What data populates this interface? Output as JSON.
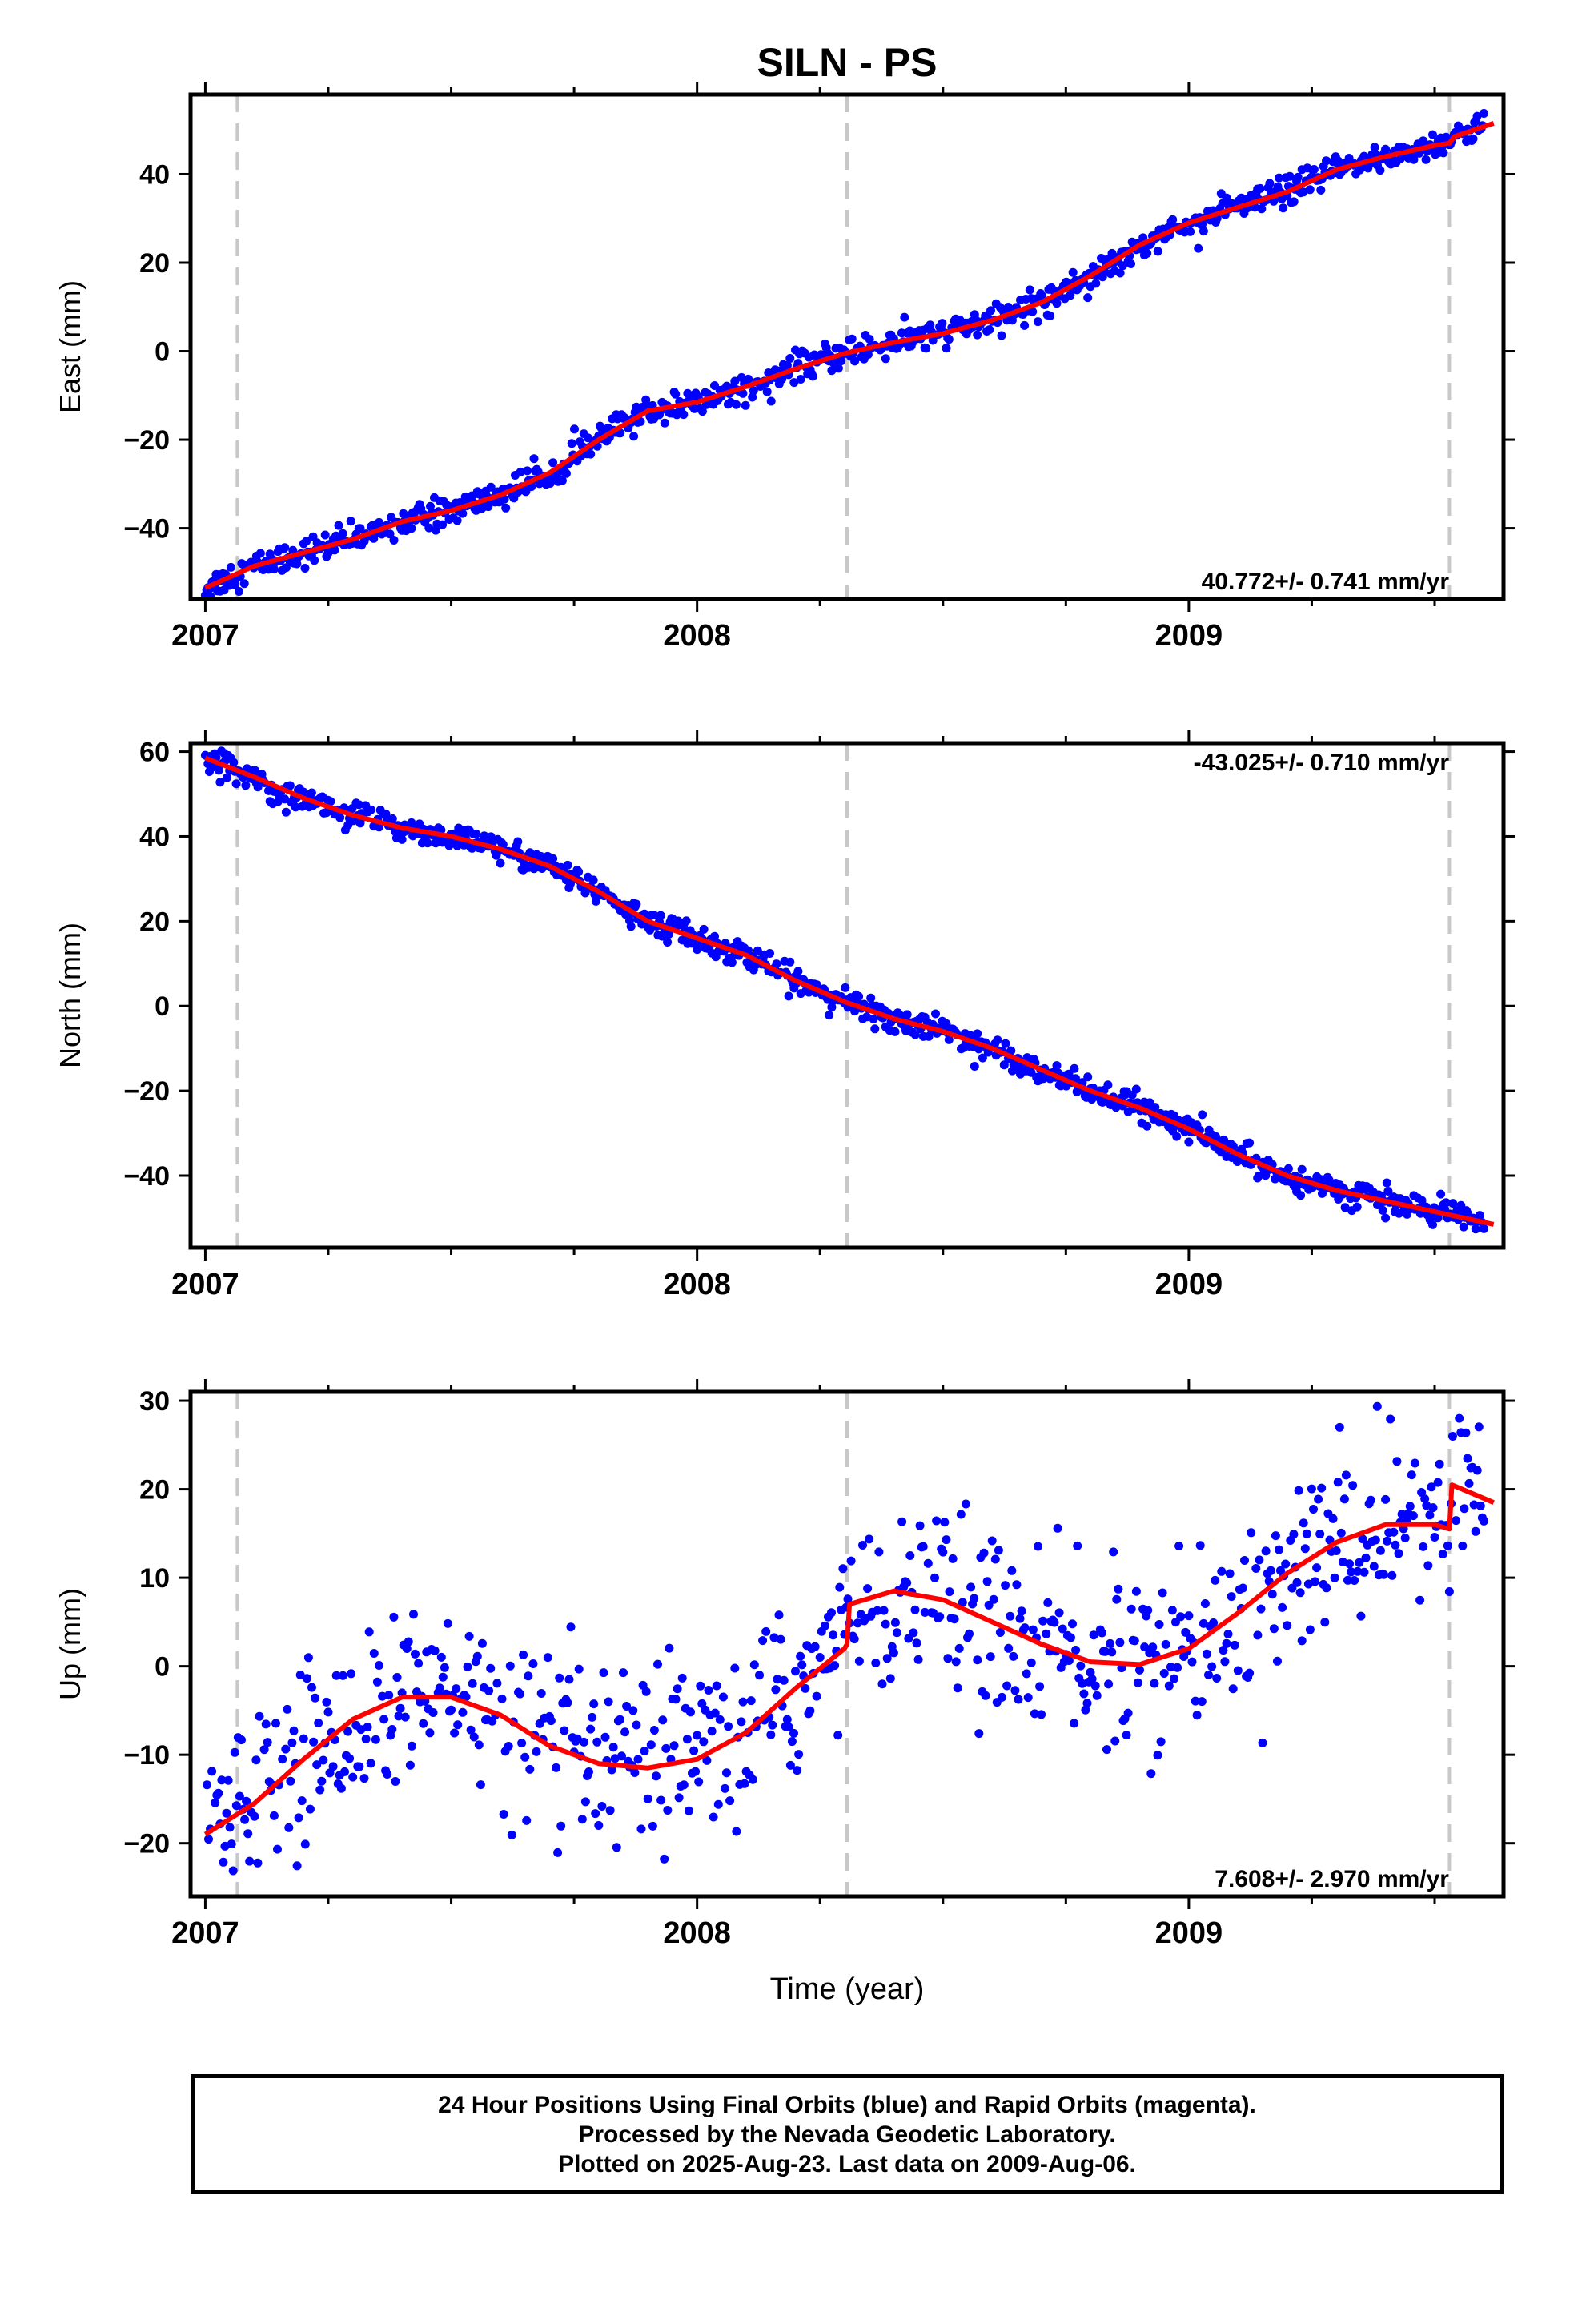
{
  "title": "SILN - PS",
  "colors": {
    "data": "#0000ff",
    "model": "#ff0000",
    "discontinuity": "#c8c8c8",
    "frame": "#000000"
  },
  "chart_data": [
    {
      "type": "scatter",
      "component": "east",
      "ylabel": "East (mm)",
      "xlabel": "",
      "xlim": [
        2006.97,
        2009.64
      ],
      "ylim": [
        -56,
        58
      ],
      "xticks": [
        2007,
        2008,
        2009
      ],
      "xtick_labels": [
        "2007",
        "2008",
        "2009"
      ],
      "yticks": [
        -40,
        -20,
        0,
        20,
        40
      ],
      "ytick_labels": [
        "−40",
        "−20",
        "0",
        "20",
        "40"
      ],
      "rate_label": "40.772+/- 0.741 mm/yr",
      "rate_label_position": "bottom-right",
      "discontinuities": [
        2007.065,
        2008.305,
        2009.53
      ],
      "model_points": [
        [
          2007.0,
          -53.5
        ],
        [
          2007.1,
          -48.5
        ],
        [
          2007.2,
          -45.5
        ],
        [
          2007.3,
          -42.5
        ],
        [
          2007.4,
          -38.5
        ],
        [
          2007.5,
          -36
        ],
        [
          2007.6,
          -32.5
        ],
        [
          2007.7,
          -27.5
        ],
        [
          2007.8,
          -20
        ],
        [
          2007.9,
          -13.5
        ],
        [
          2008.0,
          -11.5
        ],
        [
          2008.1,
          -8
        ],
        [
          2008.2,
          -4
        ],
        [
          2008.3,
          -0.5
        ],
        [
          2008.4,
          2
        ],
        [
          2008.5,
          4
        ],
        [
          2008.6,
          7
        ],
        [
          2008.7,
          11
        ],
        [
          2008.8,
          17
        ],
        [
          2008.9,
          24
        ],
        [
          2009.0,
          29
        ],
        [
          2009.1,
          32.5
        ],
        [
          2009.2,
          36
        ],
        [
          2009.3,
          41
        ],
        [
          2009.4,
          44
        ],
        [
          2009.5,
          46.5
        ],
        [
          2009.53,
          47
        ],
        [
          2009.54,
          48.5
        ],
        [
          2009.62,
          51.5
        ]
      ],
      "scatter": {
        "points_per_year": 365,
        "start": 2007.0,
        "end": 2009.6,
        "scatter_mm": 1.6
      }
    },
    {
      "type": "scatter",
      "component": "north",
      "ylabel": "North (mm)",
      "xlabel": "",
      "xlim": [
        2006.97,
        2009.64
      ],
      "ylim": [
        -57,
        62
      ],
      "xticks": [
        2007,
        2008,
        2009
      ],
      "xtick_labels": [
        "2007",
        "2008",
        "2009"
      ],
      "yticks": [
        -40,
        -20,
        0,
        20,
        40,
        60
      ],
      "ytick_labels": [
        "−40",
        "−20",
        "0",
        "20",
        "40",
        "60"
      ],
      "rate_label": "-43.025+/- 0.710 mm/yr",
      "rate_label_position": "top-right",
      "discontinuities": [
        2007.065,
        2008.305,
        2009.53
      ],
      "model_points": [
        [
          2007.0,
          58.5
        ],
        [
          2007.1,
          54
        ],
        [
          2007.2,
          49
        ],
        [
          2007.3,
          45
        ],
        [
          2007.4,
          42
        ],
        [
          2007.5,
          40
        ],
        [
          2007.6,
          37
        ],
        [
          2007.7,
          33
        ],
        [
          2007.8,
          27
        ],
        [
          2007.9,
          20
        ],
        [
          2008.0,
          16
        ],
        [
          2008.1,
          12
        ],
        [
          2008.2,
          6
        ],
        [
          2008.3,
          1
        ],
        [
          2008.4,
          -3
        ],
        [
          2008.5,
          -6
        ],
        [
          2008.6,
          -10
        ],
        [
          2008.7,
          -15
        ],
        [
          2008.8,
          -20
        ],
        [
          2008.9,
          -24
        ],
        [
          2009.0,
          -29
        ],
        [
          2009.1,
          -35
        ],
        [
          2009.2,
          -40
        ],
        [
          2009.3,
          -43.5
        ],
        [
          2009.4,
          -46
        ],
        [
          2009.5,
          -48.5
        ],
        [
          2009.62,
          -51.5
        ]
      ],
      "scatter": {
        "points_per_year": 365,
        "start": 2007.0,
        "end": 2009.6,
        "scatter_mm": 1.5
      }
    },
    {
      "type": "scatter",
      "component": "up",
      "ylabel": "Up (mm)",
      "xlabel": "Time (year)",
      "xlim": [
        2006.97,
        2009.64
      ],
      "ylim": [
        -26,
        31
      ],
      "xticks": [
        2007,
        2008,
        2009
      ],
      "xtick_labels": [
        "2007",
        "2008",
        "2009"
      ],
      "yticks": [
        -20,
        -10,
        0,
        10,
        20,
        30
      ],
      "ytick_labels": [
        "−20",
        "−10",
        "0",
        "10",
        "20",
        "30"
      ],
      "rate_label": "7.608+/- 2.970 mm/yr",
      "rate_label_position": "bottom-right",
      "discontinuities": [
        2007.065,
        2008.305,
        2009.53
      ],
      "model_points": [
        [
          2007.0,
          -19
        ],
        [
          2007.1,
          -15.5
        ],
        [
          2007.2,
          -10.5
        ],
        [
          2007.3,
          -6
        ],
        [
          2007.4,
          -3.5
        ],
        [
          2007.5,
          -3.5
        ],
        [
          2007.6,
          -5.5
        ],
        [
          2007.7,
          -9
        ],
        [
          2007.8,
          -11
        ],
        [
          2007.9,
          -11.5
        ],
        [
          2008.0,
          -10.5
        ],
        [
          2008.1,
          -7.5
        ],
        [
          2008.2,
          -2.5
        ],
        [
          2008.3,
          2
        ],
        [
          2008.305,
          2.5
        ],
        [
          2008.31,
          7
        ],
        [
          2008.4,
          8.5
        ],
        [
          2008.5,
          7.5
        ],
        [
          2008.6,
          5
        ],
        [
          2008.7,
          2.5
        ],
        [
          2008.8,
          0.5
        ],
        [
          2008.9,
          0.2
        ],
        [
          2009.0,
          2
        ],
        [
          2009.1,
          6
        ],
        [
          2009.2,
          10.5
        ],
        [
          2009.3,
          14
        ],
        [
          2009.4,
          16
        ],
        [
          2009.5,
          16
        ],
        [
          2009.53,
          15.5
        ],
        [
          2009.535,
          20.5
        ],
        [
          2009.62,
          18.5
        ]
      ],
      "scatter": {
        "points_per_year": 300,
        "start": 2007.0,
        "end": 2009.6,
        "scatter_mm": 5.0
      }
    }
  ],
  "caption": {
    "line1": "24 Hour Positions Using Final Orbits (blue) and Rapid Orbits (magenta).",
    "line2": "Processed by the Nevada Geodetic Laboratory.",
    "line3": "Plotted on 2025-Aug-23. Last data on 2009-Aug-06."
  }
}
